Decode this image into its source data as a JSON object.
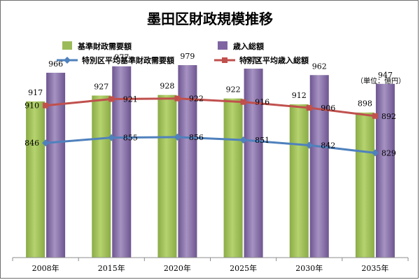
{
  "chart_data": {
    "type": "bar",
    "title": "墨田区財政規模推移",
    "unit_note": "（単位：億円）",
    "categories": [
      "2008年",
      "2015年",
      "2020年",
      "2025年",
      "2030年",
      "2035年"
    ],
    "ylim": [
      650,
      1000
    ],
    "grid": false,
    "legend_position": "top",
    "bar_series": [
      {
        "name": "基準財政需要額",
        "color": "#9bbb59",
        "values": [
          917,
          927,
          928,
          922,
          912,
          898
        ]
      },
      {
        "name": "歳入総額",
        "color": "#8064a2",
        "values": [
          966,
          977,
          979,
          973,
          962,
          947
        ]
      }
    ],
    "line_series": [
      {
        "name": "特別区平均基準財政需要額",
        "color": "#4f81bd",
        "values": [
          846,
          855,
          856,
          851,
          842,
          829
        ]
      },
      {
        "name": "特別区平均歳入総額",
        "color": "#c0504d",
        "values": [
          910,
          921,
          922,
          916,
          906,
          892
        ]
      }
    ]
  }
}
